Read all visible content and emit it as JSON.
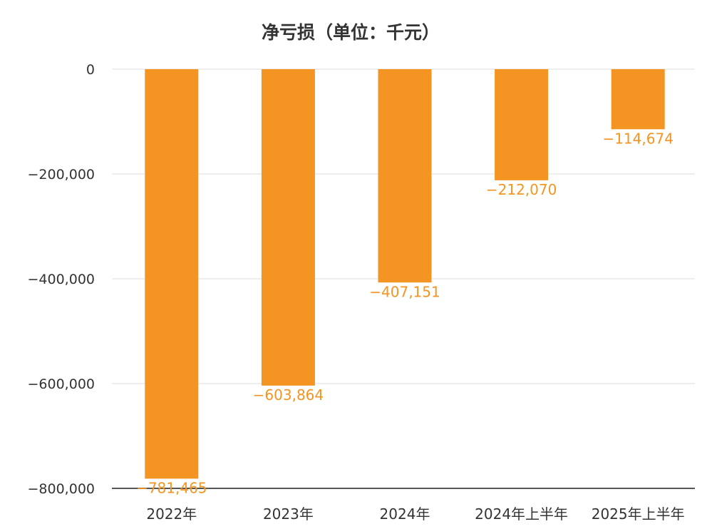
{
  "chart_data": {
    "type": "bar",
    "title": "净亏损（单位：千元）",
    "categories": [
      "2022年",
      "2023年",
      "2024年",
      "2024年上半年",
      "2025年上半年"
    ],
    "values": [
      -781465,
      -603864,
      -407151,
      -212070,
      -114674
    ],
    "data_labels": [
      "−781,465",
      "−603,864",
      "−407,151",
      "−212,070",
      "−114,674"
    ],
    "ylim": [
      -800000,
      0
    ],
    "yticks": [
      0,
      -200000,
      -400000,
      -600000,
      -800000
    ],
    "ytick_labels": [
      "0",
      "−200,000",
      "−400,000",
      "−600,000",
      "−800,000"
    ],
    "grid": true,
    "bar_color": "#F39423",
    "label_color": "#F39423"
  }
}
